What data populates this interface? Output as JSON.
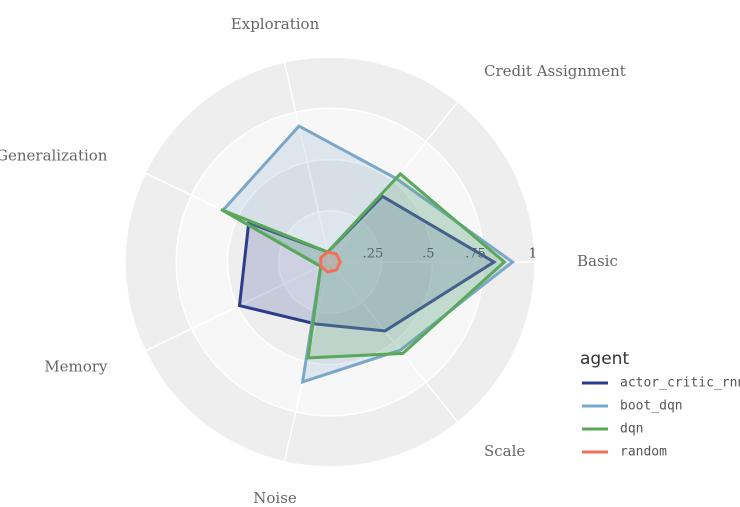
{
  "chart_data": {
    "type": "radar",
    "categories": [
      "Basic",
      "Credit Assignment",
      "Exploration",
      "Generalization",
      "Memory",
      "Noise",
      "Scale"
    ],
    "series": [
      {
        "name": "actor_critic_rnn",
        "color": "#2e3a8c",
        "values": [
          0.8,
          0.41,
          0.05,
          0.44,
          0.49,
          0.31,
          0.43
        ]
      },
      {
        "name": "boot_dqn",
        "color": "#7ba7c9",
        "values": [
          0.89,
          0.52,
          0.68,
          0.58,
          0.05,
          0.6,
          0.55
        ]
      },
      {
        "name": "dqn",
        "color": "#5aa85a",
        "values": [
          0.85,
          0.55,
          0.05,
          0.59,
          0.05,
          0.48,
          0.57
        ]
      },
      {
        "name": "random",
        "color": "#f0705a",
        "values": [
          0.05,
          0.05,
          0.05,
          0.05,
          0.05,
          0.05,
          0.05
        ]
      }
    ],
    "legend_title": "agent",
    "ylim": [
      0,
      1
    ],
    "yticks": [
      {
        "value": 0.25,
        "label": ".25"
      },
      {
        "value": 0.5,
        "label": ".5"
      },
      {
        "value": 0.75,
        "label": ".75"
      },
      1
    ],
    "grid": true
  }
}
